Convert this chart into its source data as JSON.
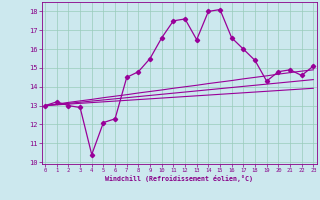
{
  "xlabel": "Windchill (Refroidissement éolien,°C)",
  "background_color": "#cce8ee",
  "grid_color": "#99ccbb",
  "line_color": "#990099",
  "tick_color": "#880088",
  "x_values": [
    0,
    1,
    2,
    3,
    4,
    5,
    6,
    7,
    8,
    9,
    10,
    11,
    12,
    13,
    14,
    15,
    16,
    17,
    18,
    19,
    20,
    21,
    22,
    23
  ],
  "series1": [
    13.0,
    13.2,
    13.0,
    12.9,
    10.4,
    12.1,
    12.3,
    14.5,
    14.8,
    15.5,
    16.6,
    17.5,
    17.6,
    16.5,
    18.0,
    18.1,
    16.6,
    16.0,
    15.4,
    14.3,
    14.8,
    14.9,
    14.6,
    15.1
  ],
  "series2": [
    13.0,
    13.08,
    13.17,
    13.25,
    13.33,
    13.42,
    13.5,
    13.58,
    13.67,
    13.75,
    13.83,
    13.92,
    14.0,
    14.08,
    14.17,
    14.25,
    14.33,
    14.42,
    14.5,
    14.58,
    14.67,
    14.75,
    14.83,
    14.9
  ],
  "series3": [
    13.0,
    13.06,
    13.12,
    13.18,
    13.24,
    13.3,
    13.36,
    13.42,
    13.48,
    13.54,
    13.6,
    13.66,
    13.72,
    13.78,
    13.84,
    13.9,
    13.96,
    14.02,
    14.08,
    14.14,
    14.2,
    14.26,
    14.32,
    14.38
  ],
  "series4": [
    13.0,
    13.04,
    13.08,
    13.12,
    13.16,
    13.2,
    13.24,
    13.28,
    13.32,
    13.36,
    13.4,
    13.44,
    13.48,
    13.52,
    13.56,
    13.6,
    13.64,
    13.68,
    13.72,
    13.76,
    13.8,
    13.84,
    13.88,
    13.92
  ],
  "ylim": [
    9.9,
    18.5
  ],
  "xlim": [
    -0.3,
    23.3
  ],
  "yticks": [
    10,
    11,
    12,
    13,
    14,
    15,
    16,
    17,
    18
  ],
  "xticks": [
    0,
    1,
    2,
    3,
    4,
    5,
    6,
    7,
    8,
    9,
    10,
    11,
    12,
    13,
    14,
    15,
    16,
    17,
    18,
    19,
    20,
    21,
    22,
    23
  ]
}
